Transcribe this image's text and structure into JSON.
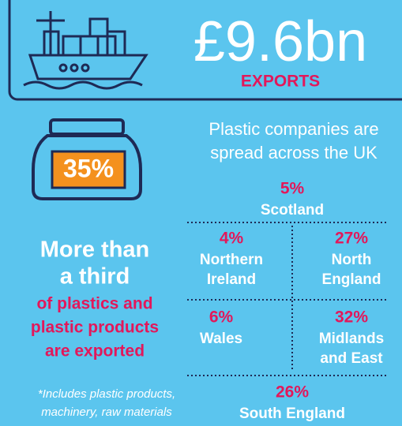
{
  "header": {
    "value": "£9.6bn",
    "label": "EXPORTS"
  },
  "share": {
    "value": "35%",
    "headline": [
      "More than",
      "a third"
    ],
    "detail": [
      "of plastics and",
      "plastic products",
      "are exported"
    ],
    "footnote": [
      "*Includes plastic products,",
      "machinery, raw materials"
    ]
  },
  "regions_title": [
    "Plastic companies are",
    "spread across the UK"
  ],
  "regions": [
    {
      "percent": "5%",
      "name": [
        "Scotland"
      ]
    },
    {
      "percent": "4%",
      "name": [
        "Northern",
        "Ireland"
      ]
    },
    {
      "percent": "27%",
      "name": [
        "North",
        "England"
      ]
    },
    {
      "percent": "6%",
      "name": [
        "Wales"
      ]
    },
    {
      "percent": "32%",
      "name": [
        "Midlands",
        "and East"
      ]
    },
    {
      "percent": "26%",
      "name": [
        "South England"
      ]
    }
  ]
}
